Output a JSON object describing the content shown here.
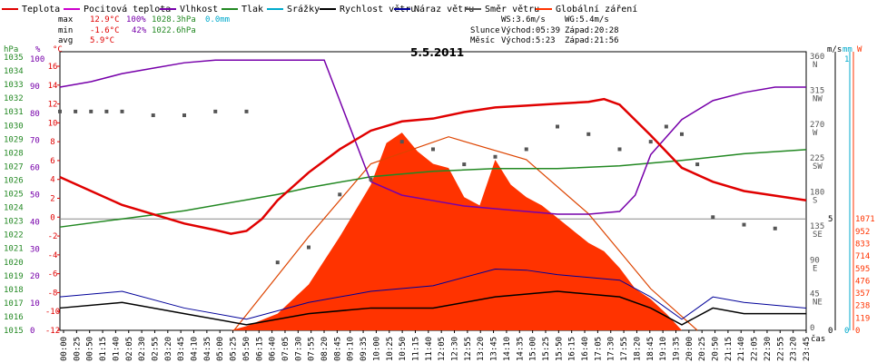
{
  "chart_data": {
    "type": "line",
    "title": "5.5.2011",
    "legend": [
      {
        "name": "Teplota",
        "color": "#e00000"
      },
      {
        "name": "Pocitová teplota",
        "color": "#cc00cc"
      },
      {
        "name": "Vlhkost",
        "color": "#7700aa"
      },
      {
        "name": "Tlak",
        "color": "#228822"
      },
      {
        "name": "Srážky",
        "color": "#00aacc"
      },
      {
        "name": "Rychlost větru",
        "color": "#000000"
      },
      {
        "name": "Náraz větru",
        "color": "#000099"
      },
      {
        "name": "Směr větru",
        "color": "#555555"
      },
      {
        "name": "Globální záření",
        "color": "#ff3300"
      }
    ],
    "stats": {
      "max_label": "max",
      "max_temp": "12.9°C",
      "max_hum": "100%",
      "max_press": "1028.3hPa",
      "max_rain": "0.0mm",
      "min_label": "min",
      "min_temp": "-1.6°C",
      "min_hum": "42%",
      "min_press": "1022.6hPa",
      "avg_label": "avg",
      "avg_temp": "5.9°C"
    },
    "sun": {
      "ws": "WS:3.6m/s",
      "wg": "WG:5.4m/s",
      "slunce": "Slunce",
      "slunce_vychod": "Východ:05:39",
      "slunce_zapad": "Západ:20:28",
      "mesic": "Měsíc",
      "mesic_vychod": "Východ:5:23",
      "mesic_zapad": "Západ:21:56"
    },
    "axes": {
      "hpa_label": "hPa",
      "pct_label": "%",
      "c_label": "°C",
      "ms_label": "m/s",
      "mm_label": "mm",
      "w_label": "W",
      "time_label": "čas",
      "hpa_ticks": [
        "1035",
        "1034",
        "1033",
        "1032",
        "1031",
        "1030",
        "1029",
        "1028",
        "1027",
        "1026",
        "1025",
        "1024",
        "1023",
        "1022",
        "1021",
        "1020",
        "1019",
        "1018",
        "1017",
        "1016",
        "1015"
      ],
      "pct_ticks": [
        "100",
        "90",
        "80",
        "70",
        "60",
        "50",
        "40",
        "30",
        "20",
        "10",
        "0"
      ],
      "c_ticks": [
        "16",
        "14",
        "12",
        "10",
        "8",
        "6",
        "4",
        "2",
        "0",
        "-2",
        "-4",
        "-6",
        "-8",
        "-10",
        "-12"
      ],
      "dir_ticks": [
        "360 N",
        "315 NW",
        "270 W",
        "225 SW",
        "180 S",
        "135 SE",
        "90 E",
        "45 NE",
        "0"
      ],
      "ms_ticks": [
        "5",
        "0"
      ],
      "mm_ticks": [
        "1",
        "0"
      ],
      "w_ticks": [
        "1071",
        "952",
        "833",
        "714",
        "595",
        "476",
        "357",
        "238",
        "119",
        "0"
      ],
      "x_ticks": [
        "00:00",
        "00:25",
        "00:50",
        "01:15",
        "01:40",
        "02:05",
        "02:30",
        "02:55",
        "03:20",
        "03:45",
        "04:10",
        "04:35",
        "05:00",
        "05:25",
        "05:50",
        "06:15",
        "06:40",
        "07:05",
        "07:30",
        "07:55",
        "08:20",
        "08:45",
        "09:10",
        "09:35",
        "10:00",
        "10:25",
        "10:50",
        "11:15",
        "11:40",
        "12:05",
        "12:30",
        "12:55",
        "13:20",
        "13:45",
        "14:10",
        "14:35",
        "15:00",
        "15:25",
        "15:50",
        "16:15",
        "16:40",
        "17:05",
        "17:30",
        "17:55",
        "18:20",
        "18:45",
        "19:10",
        "19:35",
        "20:00",
        "20:25",
        "20:50",
        "21:15",
        "21:40",
        "22:05",
        "22:30",
        "22:55",
        "23:20",
        "23:45"
      ]
    },
    "x_range_hours": [
      0,
      24
    ],
    "temp_range_c": [
      -12,
      18
    ],
    "temperature": {
      "x": [
        0,
        1,
        2,
        3,
        4,
        5,
        5.5,
        6,
        6.5,
        7,
        8,
        9,
        10,
        11,
        12,
        13,
        14,
        15,
        16,
        17,
        17.5,
        18,
        19,
        20,
        21,
        22,
        23,
        24
      ],
      "y": [
        4.5,
        3,
        1.5,
        0.5,
        -0.5,
        -1.2,
        -1.6,
        -1.3,
        0,
        2,
        5,
        7.5,
        9.5,
        10.5,
        10.8,
        11.5,
        12,
        12.2,
        12.4,
        12.6,
        12.9,
        12.3,
        9,
        5.5,
        4,
        3,
        2.5,
        2
      ]
    },
    "humidity": {
      "x": [
        0,
        1,
        2,
        3,
        4,
        5,
        6,
        7,
        8,
        8.5,
        9,
        10,
        11,
        12,
        13,
        14,
        15,
        16,
        17,
        18,
        18.5,
        19,
        20,
        21,
        22,
        23,
        24
      ],
      "y": [
        90,
        92,
        95,
        97,
        99,
        100,
        100,
        100,
        100,
        100,
        85,
        55,
        50,
        48,
        46,
        45,
        44,
        43,
        43,
        44,
        50,
        65,
        78,
        85,
        88,
        90,
        90
      ]
    },
    "pressure": {
      "x": [
        0,
        2,
        4,
        6,
        7,
        8,
        10,
        12,
        14,
        16,
        18,
        20,
        22,
        24
      ],
      "y": [
        1022.6,
        1023.2,
        1023.8,
        1024.6,
        1025,
        1025.5,
        1026.3,
        1026.7,
        1026.9,
        1026.9,
        1027.1,
        1027.5,
        1028,
        1028.3
      ]
    },
    "wind_direction": {
      "x": [
        0,
        0.5,
        1,
        1.5,
        2,
        3,
        4,
        5,
        6,
        7,
        8,
        9,
        10,
        11,
        12,
        13,
        14,
        15,
        16,
        17,
        18,
        19,
        19.5,
        20,
        20.5,
        21,
        22,
        23
      ],
      "y": [
        290,
        290,
        290,
        290,
        290,
        285,
        285,
        290,
        290,
        90,
        110,
        180,
        200,
        250,
        240,
        220,
        230,
        240,
        270,
        260,
        240,
        250,
        270,
        260,
        220,
        150,
        140,
        135
      ]
    },
    "radiation": {
      "x": [
        0,
        5.5,
        6,
        7,
        8,
        9,
        10,
        10.5,
        11,
        11.5,
        12,
        12.5,
        13,
        13.5,
        14,
        14.5,
        15,
        15.5,
        16,
        16.5,
        17,
        17.5,
        18,
        18.5,
        19,
        19.5,
        20,
        24
      ],
      "y": [
        0,
        0,
        20,
        80,
        220,
        450,
        700,
        900,
        950,
        860,
        800,
        780,
        640,
        600,
        820,
        700,
        640,
        600,
        540,
        480,
        420,
        380,
        300,
        200,
        150,
        80,
        0,
        0
      ]
    },
    "radiation_max_theory": {
      "x": [
        5.6,
        8,
        10,
        12.5,
        15,
        17,
        19,
        20.5
      ],
      "y": [
        0,
        450,
        800,
        930,
        820,
        560,
        200,
        0
      ]
    },
    "wind_speed": {
      "x": [
        0,
        2,
        4,
        6,
        8,
        10,
        12,
        14,
        16,
        18,
        19,
        20,
        21,
        22,
        24
      ],
      "y": [
        2,
        2.5,
        1.5,
        0.5,
        1.5,
        2,
        2,
        3,
        3.5,
        3,
        2,
        0.5,
        2,
        1.5,
        1.5
      ]
    },
    "wind_gust": {
      "x": [
        0,
        2,
        4,
        6,
        8,
        10,
        12,
        14,
        15,
        16,
        18,
        19,
        20,
        21,
        22,
        24
      ],
      "y": [
        3,
        3.5,
        2,
        1,
        2.5,
        3.5,
        4,
        5.5,
        5.4,
        5,
        4.5,
        3,
        1,
        3,
        2.5,
        2
      ]
    }
  }
}
